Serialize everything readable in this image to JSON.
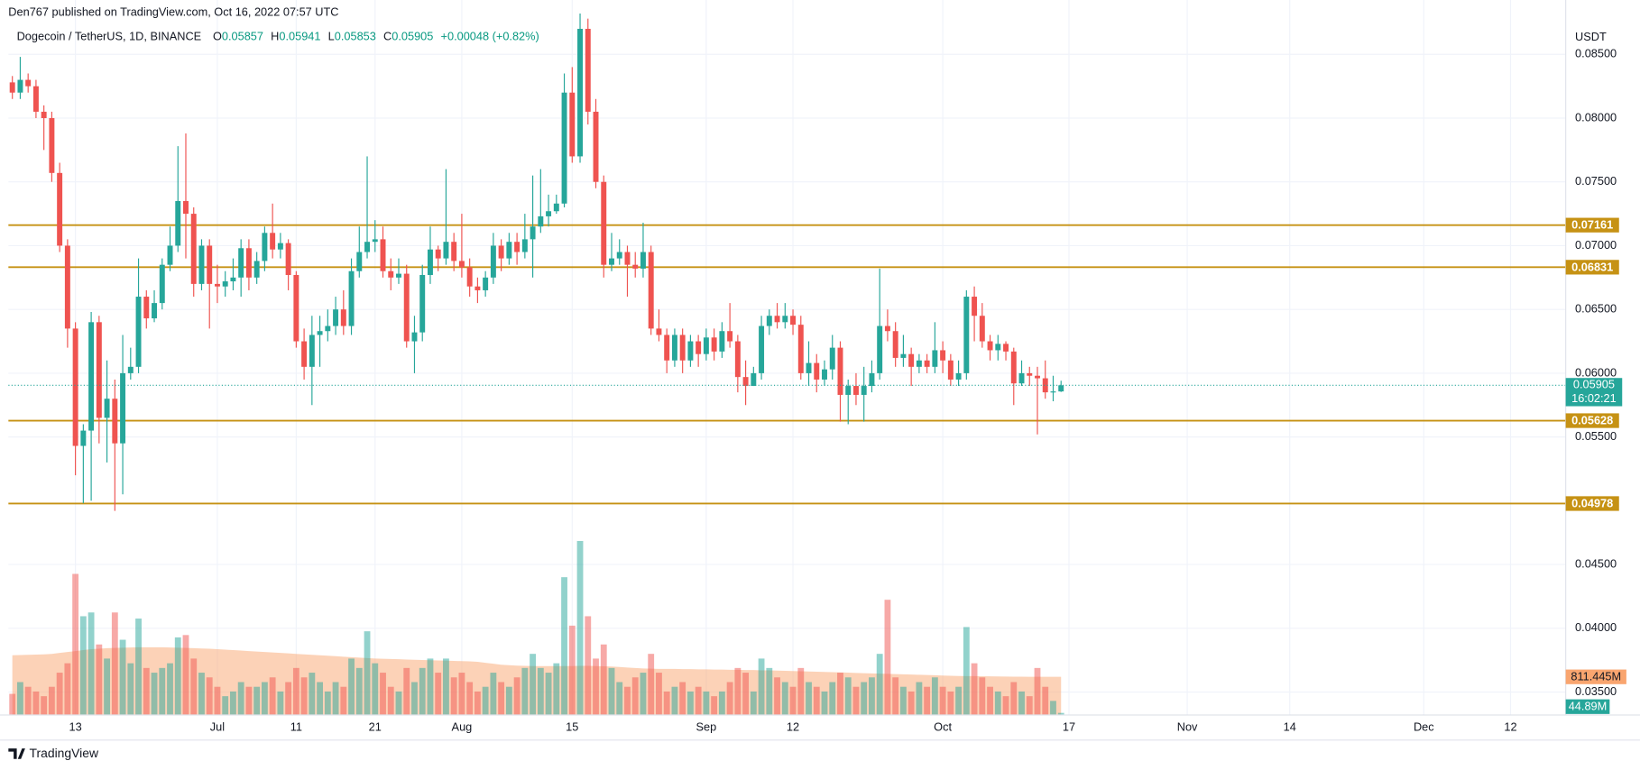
{
  "chart_data": {
    "type": "candlestick",
    "title": "Den767 published on TradingView.com, Oct 16, 2022 07:57 UTC",
    "ohlc_labels": [
      "O",
      "H",
      "L",
      "C"
    ],
    "change": "+0.00048 (+0.82%)",
    "countdown": "16:02:21",
    "y_axis_label": "USDT",
    "footer_brand": "TradingView",
    "x": [
      "2022-06-05",
      "2022-06-06",
      "2022-06-07",
      "2022-06-08",
      "2022-06-09",
      "2022-06-10",
      "2022-06-11",
      "2022-06-12",
      "2022-06-13",
      "2022-06-14",
      "2022-06-15",
      "2022-06-16",
      "2022-06-17",
      "2022-06-18",
      "2022-06-19",
      "2022-06-20",
      "2022-06-21",
      "2022-06-22",
      "2022-06-23",
      "2022-06-24",
      "2022-06-25",
      "2022-06-26",
      "2022-06-27",
      "2022-06-28",
      "2022-06-29",
      "2022-06-30",
      "2022-07-01",
      "2022-07-02",
      "2022-07-03",
      "2022-07-04",
      "2022-07-05",
      "2022-07-06",
      "2022-07-07",
      "2022-07-08",
      "2022-07-09",
      "2022-07-10",
      "2022-07-11",
      "2022-07-12",
      "2022-07-13",
      "2022-07-14",
      "2022-07-15",
      "2022-07-16",
      "2022-07-17",
      "2022-07-18",
      "2022-07-19",
      "2022-07-20",
      "2022-07-21",
      "2022-07-22",
      "2022-07-23",
      "2022-07-24",
      "2022-07-25",
      "2022-07-26",
      "2022-07-27",
      "2022-07-28",
      "2022-07-29",
      "2022-07-30",
      "2022-07-31",
      "2022-08-01",
      "2022-08-02",
      "2022-08-03",
      "2022-08-04",
      "2022-08-05",
      "2022-08-06",
      "2022-08-07",
      "2022-08-08",
      "2022-08-09",
      "2022-08-10",
      "2022-08-11",
      "2022-08-12",
      "2022-08-13",
      "2022-08-14",
      "2022-08-15",
      "2022-08-16",
      "2022-08-17",
      "2022-08-18",
      "2022-08-19",
      "2022-08-20",
      "2022-08-21",
      "2022-08-22",
      "2022-08-23",
      "2022-08-24",
      "2022-08-25",
      "2022-08-26",
      "2022-08-27",
      "2022-08-28",
      "2022-08-29",
      "2022-08-30",
      "2022-08-31",
      "2022-09-01",
      "2022-09-02",
      "2022-09-03",
      "2022-09-04",
      "2022-09-05",
      "2022-09-06",
      "2022-09-07",
      "2022-09-08",
      "2022-09-09",
      "2022-09-10",
      "2022-09-11",
      "2022-09-12",
      "2022-09-13",
      "2022-09-14",
      "2022-09-15",
      "2022-09-16",
      "2022-09-17",
      "2022-09-18",
      "2022-09-19",
      "2022-09-20",
      "2022-09-21",
      "2022-09-22",
      "2022-09-23",
      "2022-09-24",
      "2022-09-25",
      "2022-09-26",
      "2022-09-27",
      "2022-09-28",
      "2022-09-29",
      "2022-09-30",
      "2022-10-01",
      "2022-10-02",
      "2022-10-03",
      "2022-10-04",
      "2022-10-05",
      "2022-10-06",
      "2022-10-07",
      "2022-10-08",
      "2022-10-09",
      "2022-10-10",
      "2022-10-11",
      "2022-10-12",
      "2022-10-13",
      "2022-10-14",
      "2022-10-15",
      "2022-10-16"
    ],
    "xlim": [
      "2022-06-04T12:00:00Z",
      "2022-12-19T00:00:00Z"
    ],
    "xticks": [
      {
        "value": "2022-06-13",
        "label": "13"
      },
      {
        "value": "2022-07-01",
        "label": "Jul"
      },
      {
        "value": "2022-07-11",
        "label": "11"
      },
      {
        "value": "2022-07-21",
        "label": "21"
      },
      {
        "value": "2022-08-01",
        "label": "Aug"
      },
      {
        "value": "2022-08-15",
        "label": "15"
      },
      {
        "value": "2022-09-01",
        "label": "Sep"
      },
      {
        "value": "2022-09-12",
        "label": "12"
      },
      {
        "value": "2022-10-01",
        "label": "Oct"
      },
      {
        "value": "2022-10-17",
        "label": "17"
      },
      {
        "value": "2022-11-01",
        "label": "Nov"
      },
      {
        "value": "2022-11-14",
        "label": "14"
      },
      {
        "value": "2022-12-01",
        "label": "Dec"
      },
      {
        "value": "2022-12-12",
        "label": "12"
      }
    ],
    "ylim": [
      0.0332,
      0.08926
    ],
    "yticks": [
      {
        "value": 0.085,
        "label": "0.08500"
      },
      {
        "value": 0.08,
        "label": "0.08000"
      },
      {
        "value": 0.075,
        "label": "0.07500"
      },
      {
        "value": 0.07,
        "label": "0.07000"
      },
      {
        "value": 0.065,
        "label": "0.06500"
      },
      {
        "value": 0.06,
        "label": "0.06000"
      },
      {
        "value": 0.055,
        "label": "0.05500"
      },
      {
        "value": 0.045,
        "label": "0.04500"
      },
      {
        "value": 0.04,
        "label": "0.04000"
      },
      {
        "value": 0.035,
        "label": "0.03500"
      }
    ],
    "grid": true,
    "series": [
      {
        "name": "Dogecoin / TetherUS, 1D, BINANCE",
        "up_color": "#26a69a",
        "down_color": "#ef5350",
        "open": [
          0.0828,
          0.082,
          0.083,
          0.0825,
          0.0805,
          0.08,
          0.0757,
          0.07,
          0.0635,
          0.0543,
          0.0555,
          0.064,
          0.0565,
          0.058,
          0.0545,
          0.06,
          0.0605,
          0.066,
          0.0643,
          0.0655,
          0.0685,
          0.07,
          0.0735,
          0.0725,
          0.067,
          0.07,
          0.067,
          0.0668,
          0.0672,
          0.0675,
          0.0698,
          0.0675,
          0.0688,
          0.071,
          0.0697,
          0.0702,
          0.0677,
          0.0625,
          0.0605,
          0.063,
          0.0633,
          0.0637,
          0.065,
          0.0637,
          0.068,
          0.0695,
          0.0703,
          0.0705,
          0.068,
          0.0675,
          0.0678,
          0.0625,
          0.0632,
          0.0677,
          0.0697,
          0.069,
          0.0703,
          0.0688,
          0.0683,
          0.0668,
          0.0665,
          0.0675,
          0.07,
          0.069,
          0.0703,
          0.0695,
          0.0705,
          0.0715,
          0.0723,
          0.0727,
          0.0733,
          0.082,
          0.077,
          0.087,
          0.0805,
          0.075,
          0.0685,
          0.069,
          0.0695,
          0.0685,
          0.0682,
          0.0695,
          0.0635,
          0.063,
          0.061,
          0.063,
          0.061,
          0.0625,
          0.0615,
          0.0628,
          0.0617,
          0.0633,
          0.0625,
          0.0597,
          0.059,
          0.06,
          0.0637,
          0.0645,
          0.064,
          0.0645,
          0.0638,
          0.06,
          0.0608,
          0.0595,
          0.0603,
          0.062,
          0.0583,
          0.059,
          0.0583,
          0.059,
          0.06,
          0.0637,
          0.0633,
          0.0612,
          0.0615,
          0.0605,
          0.061,
          0.0605,
          0.0618,
          0.061,
          0.0595,
          0.06,
          0.066,
          0.0645,
          0.0625,
          0.0618,
          0.0623,
          0.0617,
          0.0592,
          0.06,
          0.0598,
          0.0596,
          0.0585,
          0.05857
        ],
        "high": [
          0.0833,
          0.0848,
          0.0835,
          0.083,
          0.081,
          0.0805,
          0.0765,
          0.0705,
          0.064,
          0.056,
          0.0648,
          0.0645,
          0.061,
          0.0595,
          0.063,
          0.062,
          0.069,
          0.0665,
          0.0665,
          0.069,
          0.0715,
          0.0778,
          0.0788,
          0.073,
          0.0705,
          0.0705,
          0.0685,
          0.068,
          0.069,
          0.0705,
          0.0705,
          0.0695,
          0.0715,
          0.0733,
          0.071,
          0.0705,
          0.068,
          0.0635,
          0.0645,
          0.0645,
          0.065,
          0.066,
          0.0665,
          0.069,
          0.0715,
          0.077,
          0.072,
          0.0715,
          0.069,
          0.069,
          0.0685,
          0.0645,
          0.0685,
          0.0715,
          0.07,
          0.076,
          0.071,
          0.0725,
          0.069,
          0.0675,
          0.068,
          0.071,
          0.0705,
          0.071,
          0.071,
          0.0725,
          0.0755,
          0.076,
          0.074,
          0.074,
          0.0835,
          0.084,
          0.0882,
          0.0878,
          0.0815,
          0.0755,
          0.071,
          0.0705,
          0.07,
          0.0695,
          0.0718,
          0.07,
          0.065,
          0.0635,
          0.0635,
          0.0635,
          0.063,
          0.063,
          0.0635,
          0.0635,
          0.064,
          0.0655,
          0.063,
          0.061,
          0.0605,
          0.0645,
          0.065,
          0.0655,
          0.0655,
          0.065,
          0.0645,
          0.0625,
          0.0615,
          0.061,
          0.063,
          0.0625,
          0.0595,
          0.06,
          0.0605,
          0.061,
          0.0682,
          0.065,
          0.064,
          0.063,
          0.062,
          0.0615,
          0.0615,
          0.064,
          0.0625,
          0.0615,
          0.061,
          0.0665,
          0.0668,
          0.0655,
          0.063,
          0.063,
          0.0625,
          0.062,
          0.061,
          0.0605,
          0.0605,
          0.061,
          0.0598,
          0.05941
        ],
        "low": [
          0.0815,
          0.0815,
          0.082,
          0.08,
          0.0775,
          0.075,
          0.0695,
          0.062,
          0.052,
          0.0498,
          0.05,
          0.0545,
          0.053,
          0.0492,
          0.0505,
          0.0595,
          0.06,
          0.0635,
          0.064,
          0.065,
          0.068,
          0.0695,
          0.069,
          0.066,
          0.0665,
          0.0635,
          0.0655,
          0.066,
          0.0665,
          0.066,
          0.0665,
          0.067,
          0.068,
          0.069,
          0.069,
          0.0665,
          0.062,
          0.0595,
          0.0575,
          0.0605,
          0.0625,
          0.063,
          0.063,
          0.063,
          0.0675,
          0.069,
          0.0695,
          0.0675,
          0.0665,
          0.067,
          0.062,
          0.06,
          0.0625,
          0.067,
          0.068,
          0.0685,
          0.068,
          0.0675,
          0.066,
          0.0655,
          0.066,
          0.067,
          0.068,
          0.0685,
          0.0685,
          0.069,
          0.0675,
          0.071,
          0.0715,
          0.0725,
          0.073,
          0.0765,
          0.0765,
          0.0795,
          0.0745,
          0.0675,
          0.068,
          0.0685,
          0.066,
          0.0675,
          0.0675,
          0.063,
          0.0625,
          0.06,
          0.0605,
          0.06,
          0.0605,
          0.0605,
          0.061,
          0.061,
          0.0612,
          0.062,
          0.0585,
          0.0575,
          0.059,
          0.0595,
          0.063,
          0.0635,
          0.0635,
          0.063,
          0.0595,
          0.059,
          0.0585,
          0.059,
          0.0595,
          0.0562,
          0.056,
          0.0575,
          0.0562,
          0.0585,
          0.0595,
          0.0625,
          0.0605,
          0.0605,
          0.059,
          0.06,
          0.06,
          0.06,
          0.06,
          0.059,
          0.059,
          0.0595,
          0.0625,
          0.062,
          0.061,
          0.061,
          0.061,
          0.0575,
          0.059,
          0.059,
          0.0552,
          0.058,
          0.0578,
          0.05853
        ],
        "close": [
          0.082,
          0.083,
          0.0825,
          0.0805,
          0.08,
          0.0757,
          0.07,
          0.0635,
          0.0543,
          0.0555,
          0.064,
          0.0565,
          0.058,
          0.0545,
          0.06,
          0.0605,
          0.066,
          0.0643,
          0.0655,
          0.0685,
          0.07,
          0.0735,
          0.0725,
          0.067,
          0.07,
          0.067,
          0.0668,
          0.0672,
          0.0675,
          0.0698,
          0.0675,
          0.0688,
          0.071,
          0.0697,
          0.0702,
          0.0677,
          0.0625,
          0.0605,
          0.063,
          0.0633,
          0.0637,
          0.065,
          0.0637,
          0.068,
          0.0695,
          0.0703,
          0.0705,
          0.068,
          0.0675,
          0.0678,
          0.0625,
          0.0632,
          0.0677,
          0.0697,
          0.069,
          0.0703,
          0.0688,
          0.0683,
          0.0668,
          0.0665,
          0.0675,
          0.07,
          0.069,
          0.0703,
          0.0695,
          0.0705,
          0.0715,
          0.0723,
          0.0727,
          0.0733,
          0.082,
          0.077,
          0.087,
          0.0805,
          0.075,
          0.0685,
          0.069,
          0.0695,
          0.0685,
          0.0682,
          0.0695,
          0.0635,
          0.063,
          0.061,
          0.063,
          0.061,
          0.0625,
          0.0615,
          0.0628,
          0.0617,
          0.0633,
          0.0625,
          0.0597,
          0.059,
          0.06,
          0.0637,
          0.0645,
          0.064,
          0.0645,
          0.0638,
          0.06,
          0.0608,
          0.0595,
          0.0603,
          0.062,
          0.0583,
          0.059,
          0.0583,
          0.059,
          0.06,
          0.0637,
          0.0633,
          0.0612,
          0.0615,
          0.0605,
          0.061,
          0.0605,
          0.0618,
          0.061,
          0.0595,
          0.06,
          0.066,
          0.0645,
          0.0625,
          0.0618,
          0.0623,
          0.0617,
          0.0592,
          0.06,
          0.0598,
          0.0596,
          0.0585,
          0.05857,
          0.05905
        ]
      }
    ],
    "volume": {
      "up_color": "#26a69a",
      "down_color": "#ef5350",
      "opacity": 0.5,
      "last_label": "44.89M",
      "values": [
        450,
        700,
        600,
        500,
        400,
        600,
        900,
        1100,
        3000,
        2100,
        2180,
        1500,
        1200,
        2180,
        1600,
        1100,
        2050,
        1000,
        900,
        1000,
        1100,
        1650,
        1700,
        1200,
        900,
        800,
        600,
        400,
        500,
        700,
        600,
        600,
        700,
        800,
        500,
        700,
        1000,
        800,
        900,
        700,
        500,
        700,
        600,
        1200,
        1000,
        1780,
        1100,
        900,
        600,
        500,
        1000,
        700,
        1000,
        1200,
        900,
        1200,
        800,
        900,
        700,
        500,
        600,
        900,
        700,
        600,
        800,
        1000,
        1300,
        1000,
        900,
        1100,
        2930,
        1900,
        3700,
        2100,
        1200,
        1500,
        1000,
        700,
        600,
        800,
        900,
        1300,
        900,
        500,
        600,
        700,
        500,
        600,
        500,
        400,
        500,
        700,
        1000,
        900,
        500,
        1200,
        1000,
        800,
        700,
        600,
        1000,
        700,
        600,
        500,
        700,
        900,
        800,
        600,
        700,
        800,
        1300,
        2450,
        800,
        600,
        500,
        700,
        600,
        800,
        600,
        500,
        600,
        1870,
        1100,
        800,
        600,
        500,
        400,
        700,
        500,
        400,
        1000,
        600,
        300,
        44.89
      ]
    },
    "volume_ma": {
      "color": "#f9a56f",
      "opacity": 0.5,
      "last_label": "811.445M",
      "values": [
        1270,
        1275,
        1280,
        1285,
        1290,
        1300,
        1320,
        1340,
        1360,
        1380,
        1400,
        1410,
        1420,
        1425,
        1430,
        1435,
        1440,
        1440,
        1440,
        1440,
        1435,
        1430,
        1425,
        1420,
        1415,
        1410,
        1400,
        1390,
        1380,
        1370,
        1360,
        1350,
        1340,
        1330,
        1320,
        1310,
        1300,
        1290,
        1280,
        1270,
        1260,
        1250,
        1240,
        1230,
        1220,
        1210,
        1200,
        1195,
        1190,
        1185,
        1180,
        1175,
        1170,
        1165,
        1160,
        1155,
        1150,
        1145,
        1140,
        1130,
        1110,
        1090,
        1070,
        1060,
        1050,
        1045,
        1040,
        1040,
        1040,
        1040,
        1040,
        1040,
        1045,
        1045,
        1040,
        1035,
        1030,
        1020,
        1010,
        1000,
        990,
        985,
        980,
        980,
        980,
        975,
        975,
        970,
        970,
        965,
        965,
        960,
        960,
        955,
        955,
        950,
        950,
        945,
        940,
        935,
        930,
        925,
        920,
        915,
        910,
        905,
        900,
        895,
        890,
        885,
        880,
        875,
        870,
        865,
        860,
        855,
        850,
        845,
        840,
        835,
        830,
        828,
        826,
        824,
        822,
        820,
        818,
        816,
        814,
        813,
        812,
        812,
        811.5,
        811.445
      ]
    },
    "volume_ylim": [
      0,
      4000
    ],
    "levels": [
      0.07161,
      0.06831,
      0.05628,
      0.04978
    ],
    "level_color": "#c69214",
    "price_line_color": "#26a69a"
  }
}
